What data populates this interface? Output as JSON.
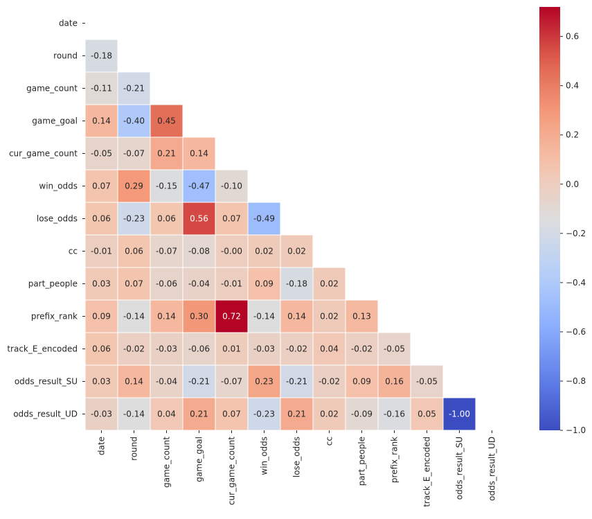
{
  "chart_data": {
    "type": "heatmap",
    "mask": "upper-triangle",
    "variables": [
      "date",
      "round",
      "game_count",
      "game_goal",
      "cur_game_count",
      "win_odds",
      "lose_odds",
      "cc",
      "part_people",
      "prefix_rank",
      "track_E_encoded",
      "odds_result_SU",
      "odds_result_UD"
    ],
    "values": [
      [],
      [
        -0.18
      ],
      [
        -0.11,
        -0.21
      ],
      [
        0.14,
        -0.4,
        0.45
      ],
      [
        -0.05,
        -0.07,
        0.21,
        0.14
      ],
      [
        0.07,
        0.29,
        -0.15,
        -0.47,
        -0.1
      ],
      [
        0.06,
        -0.23,
        0.06,
        0.56,
        0.07,
        -0.49
      ],
      [
        -0.01,
        0.06,
        -0.07,
        -0.08,
        -0.0,
        0.02,
        0.02
      ],
      [
        0.03,
        0.07,
        -0.06,
        -0.04,
        -0.01,
        0.09,
        -0.18,
        0.02
      ],
      [
        0.09,
        -0.14,
        0.14,
        0.3,
        0.72,
        -0.14,
        0.14,
        0.02,
        0.13
      ],
      [
        0.06,
        -0.02,
        -0.03,
        -0.06,
        0.01,
        -0.03,
        -0.02,
        0.04,
        -0.02,
        -0.05
      ],
      [
        0.03,
        0.14,
        -0.04,
        -0.21,
        -0.07,
        0.23,
        -0.21,
        -0.02,
        0.09,
        0.16,
        -0.05
      ],
      [
        -0.03,
        -0.14,
        0.04,
        0.21,
        0.07,
        -0.23,
        0.21,
        0.02,
        -0.09,
        -0.16,
        0.05,
        -1.0
      ]
    ],
    "value_labels": [
      [],
      [
        "-0.18"
      ],
      [
        "-0.11",
        "-0.21"
      ],
      [
        "0.14",
        "-0.40",
        "0.45"
      ],
      [
        "-0.05",
        "-0.07",
        "0.21",
        "0.14"
      ],
      [
        "0.07",
        "0.29",
        "-0.15",
        "-0.47",
        "-0.10"
      ],
      [
        "0.06",
        "-0.23",
        "0.06",
        "0.56",
        "0.07",
        "-0.49"
      ],
      [
        "-0.01",
        "0.06",
        "-0.07",
        "-0.08",
        "-0.00",
        "0.02",
        "0.02"
      ],
      [
        "0.03",
        "0.07",
        "-0.06",
        "-0.04",
        "-0.01",
        "0.09",
        "-0.18",
        "0.02"
      ],
      [
        "0.09",
        "-0.14",
        "0.14",
        "0.30",
        "0.72",
        "-0.14",
        "0.14",
        "0.02",
        "0.13"
      ],
      [
        "0.06",
        "-0.02",
        "-0.03",
        "-0.06",
        "0.01",
        "-0.03",
        "-0.02",
        "0.04",
        "-0.02",
        "-0.05"
      ],
      [
        "0.03",
        "0.14",
        "-0.04",
        "-0.21",
        "-0.07",
        "0.23",
        "-0.21",
        "-0.02",
        "0.09",
        "0.16",
        "-0.05"
      ],
      [
        "-0.03",
        "-0.14",
        "0.04",
        "0.21",
        "0.07",
        "-0.23",
        "0.21",
        "0.02",
        "-0.09",
        "-0.16",
        "0.05",
        "-1.00"
      ]
    ],
    "colormap": "coolwarm",
    "color_range": [
      -1.0,
      0.72
    ],
    "colorbar": {
      "ticks": [
        0.6,
        0.4,
        0.2,
        0.0,
        -0.2,
        -0.4,
        -0.6,
        -0.8,
        -1.0
      ],
      "tick_labels": [
        "0.6",
        "0.4",
        "0.2",
        "0.0",
        "−0.2",
        "−0.4",
        "−0.6",
        "−0.8",
        "−1.0"
      ]
    },
    "title": "",
    "xlabel": "",
    "ylabel": ""
  }
}
